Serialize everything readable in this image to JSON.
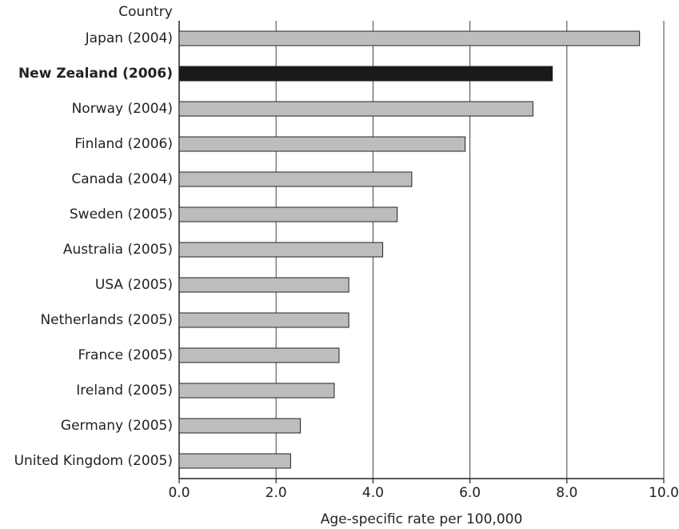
{
  "chart_data": {
    "type": "hbar",
    "y_label": "Country",
    "x_label": "Age-specific rate per 100,000",
    "categories": [
      "Japan (2004)",
      "New Zealand (2006)",
      "Norway (2004)",
      "Finland (2006)",
      "Canada (2004)",
      "Sweden (2005)",
      "Australia (2005)",
      "USA (2005)",
      "Netherlands (2005)",
      "France (2005)",
      "Ireland (2005)",
      "Germany (2005)",
      "United Kingdom (2005)"
    ],
    "values": [
      9.5,
      7.7,
      7.3,
      5.9,
      4.8,
      4.5,
      4.2,
      3.5,
      3.5,
      3.3,
      3.2,
      2.5,
      2.3
    ],
    "color": "#bdbdbd",
    "colors": [
      "#bdbdbd",
      "#1a1a1a",
      "#bdbdbd",
      "#bdbdbd",
      "#bdbdbd",
      "#bdbdbd",
      "#bdbdbd",
      "#bdbdbd",
      "#bdbdbd",
      "#bdbdbd",
      "#bdbdbd",
      "#bdbdbd",
      "#bdbdbd"
    ],
    "xlim": [
      0,
      10
    ],
    "xticks": [
      {
        "value": 0,
        "label": "0.0"
      },
      {
        "value": 2,
        "label": "2.0"
      },
      {
        "value": 4,
        "label": "4.0"
      },
      {
        "value": 6,
        "label": "6.0"
      },
      {
        "value": 8,
        "label": "8.0"
      },
      {
        "value": 10,
        "label": "10.0"
      }
    ],
    "grid": true
  }
}
